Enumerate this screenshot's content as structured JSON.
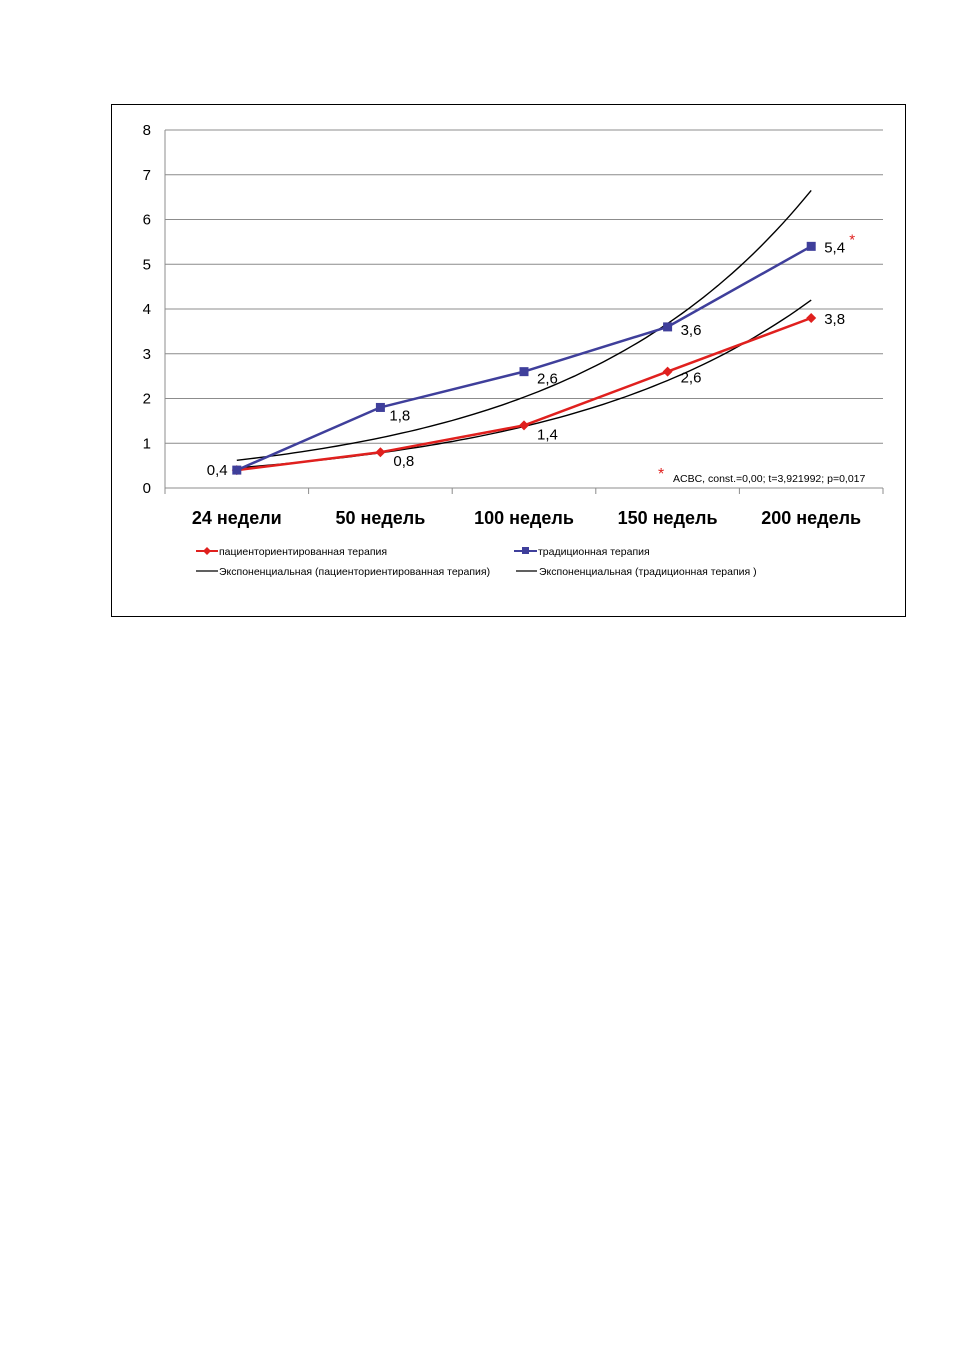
{
  "chart_data": {
    "type": "line",
    "categories": [
      "24 недели",
      "50 недель",
      "100 недель",
      "150 недель",
      "200 недель"
    ],
    "ylim": [
      0,
      8
    ],
    "yticks": [
      "0",
      "1",
      "2",
      "3",
      "4",
      "5",
      "6",
      "7",
      "8"
    ],
    "grid": true,
    "legend_position": "bottom",
    "series": [
      {
        "name": "пациенториентированная терапия",
        "color": "#e0201e",
        "marker": "diamond",
        "values": [
          0.4,
          0.8,
          1.4,
          2.6,
          3.8
        ],
        "labels": [
          "",
          "0,8",
          "1,4",
          "2,6",
          "3,8"
        ]
      },
      {
        "name": "традиционная терапия",
        "color": "#3f3f9b",
        "marker": "square",
        "values": [
          0.4,
          1.8,
          2.6,
          3.6,
          5.4
        ],
        "labels": [
          "0,4",
          "1,8",
          "2,6",
          "3,6",
          "5,4"
        ]
      }
    ],
    "trendlines": [
      {
        "name": "Экспоненциальная (пациенториентированная терапия)",
        "color": "#000000",
        "type": "exponential",
        "values": [
          0.45,
          0.8,
          1.33,
          2.4,
          4.2
        ]
      },
      {
        "name": "Экспоненциальная (традиционная терапия )",
        "color": "#000000",
        "type": "exponential",
        "values": [
          0.62,
          1.12,
          2.0,
          3.65,
          6.65
        ]
      }
    ],
    "annotation": {
      "marker": "*",
      "text": "ACBC, const.=0,00; t=3,921992; p=0,017",
      "significance_marker_on": "200 недель"
    }
  }
}
